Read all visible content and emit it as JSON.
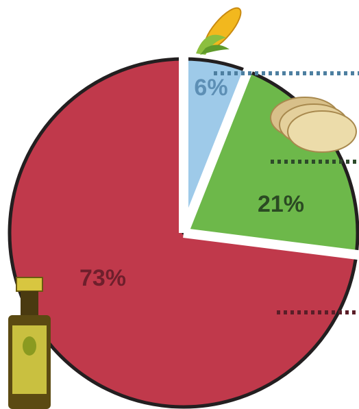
{
  "chart_data": {
    "type": "pie",
    "values": [
      6,
      21,
      73
    ],
    "value_labels": [
      "6%",
      "21%",
      "73%"
    ],
    "colors": [
      "#9ecae9",
      "#6db84a",
      "#c0394b"
    ],
    "label_colors": [
      "#5d8fb5",
      "#2b4a23",
      "#6e1f2c"
    ]
  }
}
